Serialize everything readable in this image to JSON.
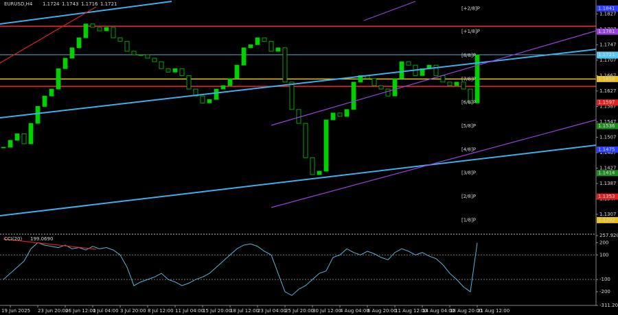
{
  "chart_data": [
    {
      "type": "candlestick",
      "title": "EURUSD,H4",
      "header_values": [
        1.1724,
        1.1743,
        1.1716,
        1.1721
      ],
      "close": [
        1.1481,
        1.1499,
        1.1516,
        1.149,
        1.1543,
        1.1587,
        1.1614,
        1.1632,
        1.1685,
        1.1712,
        1.1739,
        1.1765,
        1.1801,
        1.1792,
        1.1783,
        1.1792,
        1.1765,
        1.1756,
        1.173,
        1.1721,
        1.1721,
        1.1712,
        1.1703,
        1.1685,
        1.1676,
        1.1685,
        1.1667,
        1.1632,
        1.1614,
        1.1596,
        1.1605,
        1.1632,
        1.1641,
        1.1659,
        1.1694,
        1.1739,
        1.1747,
        1.1765,
        1.1756,
        1.173,
        1.1739,
        1.165,
        1.1579,
        1.1543,
        1.1454,
        1.141,
        1.1419,
        1.1552,
        1.157,
        1.1561,
        1.1579,
        1.165,
        1.1667,
        1.1659,
        1.1641,
        1.1632,
        1.1614,
        1.1659,
        1.1703,
        1.1694,
        1.1667,
        1.1685,
        1.1694,
        1.1667,
        1.165,
        1.1641,
        1.165,
        1.1632,
        1.1596,
        1.1721
      ],
      "color": "#00d000",
      "ylim": [
        1.1259,
        1.1863
      ],
      "yticks": [
        1.1827,
        1.1787,
        1.1747,
        1.1707,
        1.1667,
        1.1627,
        1.1587,
        1.1547,
        1.1507,
        1.1467,
        1.1427,
        1.1387,
        1.1347,
        1.1307
      ],
      "last_price": 1.1721,
      "last_price_color": "#5ac8f0",
      "lines": [
        {
          "value": 1.1795,
          "color": "#ff2020"
        },
        {
          "value": 1.1639,
          "color": "#ff2020"
        },
        {
          "value": 1.1658,
          "color": "#e8c020"
        }
      ],
      "murrey": [
        {
          "label": "[+2/8]P",
          "value": 1.1841,
          "color": "#2a3cff"
        },
        {
          "label": "[+1/8]P",
          "value": 1.1781,
          "color": "#9a40e0"
        },
        {
          "label": "[8/8]P",
          "value": 1.1719,
          "color": "#40b8e0"
        },
        {
          "label": "[7/8]P",
          "value": 1.1658,
          "color": "#e8c020"
        },
        {
          "label": "[6/8]P",
          "value": 1.1597,
          "color": "#e02020"
        },
        {
          "label": "[5/8]P",
          "value": 1.1536,
          "color": "#208a20"
        },
        {
          "label": "[4/8]P",
          "value": 1.1475,
          "color": "#2a3cff"
        },
        {
          "label": "[3/8]P",
          "value": 1.1414,
          "color": "#208a20"
        },
        {
          "label": "[2/8]P",
          "value": 1.1353,
          "color": "#e02020"
        },
        {
          "label": "[1/8]P",
          "value": 1.1292,
          "color": "#e8c020"
        }
      ]
    },
    {
      "type": "line",
      "title": "CCI(20)",
      "header_value": 199.069,
      "header_value_label": "199.0690",
      "x": [
        null,
        "19 Jun 2025",
        null,
        null,
        null,
        "23 Jun 20:00",
        null,
        null,
        null,
        "26 Jun 12:00",
        null,
        null,
        null,
        "1 Jul 04:00",
        null,
        null,
        null,
        "3 Jul 20:00",
        null,
        null,
        null,
        "8 Jul 12:00",
        null,
        null,
        null,
        "11 Jul 04:00",
        null,
        null,
        null,
        "15 Jul 20:00",
        null,
        null,
        null,
        "18 Jul 12:00",
        null,
        null,
        null,
        "23 Jul 04:00",
        null,
        null,
        null,
        "25 Jul 20:00",
        null,
        null,
        null,
        "30 Jul 12:00",
        null,
        null,
        null,
        "4 Aug 04:00",
        null,
        null,
        null,
        "6 Aug 20:00",
        null,
        null,
        null,
        "11 Aug 12:00",
        null,
        null,
        null,
        "14 Aug 04:00",
        null,
        null,
        null,
        "18 Aug 20:00",
        null,
        null,
        null,
        "21 Aug 12:00"
      ],
      "values": [
        -100,
        -50,
        0,
        50,
        150,
        200,
        180,
        170,
        160,
        180,
        150,
        160,
        140,
        170,
        150,
        160,
        140,
        100,
        0,
        -150,
        -120,
        -100,
        -80,
        -50,
        -100,
        -120,
        -150,
        -130,
        -100,
        -80,
        -50,
        0,
        50,
        100,
        150,
        180,
        190,
        170,
        130,
        100,
        -50,
        -200,
        -230,
        -180,
        -150,
        -100,
        -50,
        -30,
        80,
        100,
        150,
        120,
        100,
        130,
        110,
        80,
        60,
        120,
        150,
        130,
        100,
        120,
        90,
        70,
        20,
        -50,
        -100,
        -160,
        -200,
        199.069
      ],
      "color": "#5ab4d8",
      "ylim": [
        -311.204,
        257.9205
      ],
      "yticks": [
        257.9205,
        200,
        100,
        -100,
        -200,
        -311.204
      ],
      "levels": [
        100,
        -100
      ]
    }
  ]
}
